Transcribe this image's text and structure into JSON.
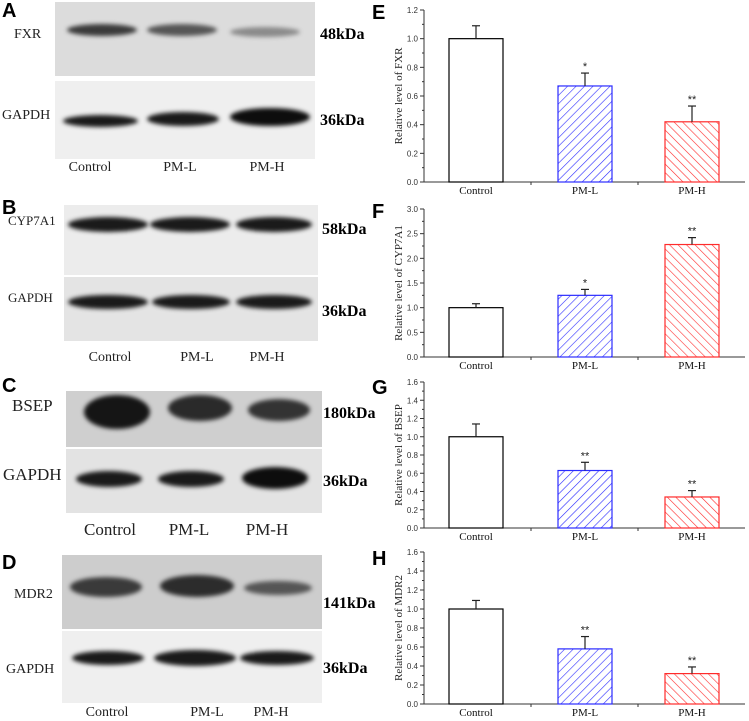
{
  "groups": [
    "Control",
    "PM-L",
    "PM-H"
  ],
  "colors": {
    "control": "#000000",
    "pm_l": "#2b2bff",
    "pm_h": "#ff2b2b"
  },
  "blots": [
    {
      "letter": "A",
      "protein": "FXR",
      "protein_kda": "48kDa",
      "ref": "GAPDH",
      "ref_kda": "36kDa",
      "lanes": [
        "Control",
        "PM-L",
        "PM-H"
      ]
    },
    {
      "letter": "B",
      "protein": "CYP7A1",
      "protein_kda": "58kDa",
      "ref": "GAPDH",
      "ref_kda": "36kDa",
      "lanes": [
        "Control",
        "PM-L",
        "PM-H"
      ]
    },
    {
      "letter": "C",
      "protein": "BSEP",
      "protein_kda": "180kDa",
      "ref": "GAPDH",
      "ref_kda": "36kDa",
      "lanes": [
        "Control",
        "PM-L",
        "PM-H"
      ]
    },
    {
      "letter": "D",
      "protein": "MDR2",
      "protein_kda": "141kDa",
      "ref": "GAPDH",
      "ref_kda": "36kDa",
      "lanes": [
        "Control",
        "PM-L",
        "PM-H"
      ]
    }
  ],
  "chart_data": [
    {
      "letter": "E",
      "type": "bar",
      "title": "",
      "categories": [
        "Control",
        "PM-L",
        "PM-H"
      ],
      "values": [
        1.0,
        0.67,
        0.42
      ],
      "error_upper": [
        1.09,
        0.76,
        0.53
      ],
      "significance": [
        "",
        "*",
        "**"
      ],
      "xlabel": "",
      "ylabel": "Relative level of FXR",
      "ylim": [
        0,
        1.2
      ],
      "yticks": [
        "0.0",
        "0.2",
        "0.4",
        "0.6",
        "0.8",
        "1.0",
        "1.2"
      ],
      "grid": false,
      "legend": "none"
    },
    {
      "letter": "F",
      "type": "bar",
      "title": "",
      "categories": [
        "Control",
        "PM-L",
        "PM-H"
      ],
      "values": [
        1.0,
        1.25,
        2.28
      ],
      "error_upper": [
        1.08,
        1.37,
        2.42
      ],
      "significance": [
        "",
        "*",
        "**"
      ],
      "xlabel": "",
      "ylabel": "Relative level of CYP7A1",
      "ylim": [
        0,
        3.0
      ],
      "yticks": [
        "0.0",
        "0.5",
        "1.0",
        "1.5",
        "2.0",
        "2.5",
        "3.0"
      ],
      "grid": false,
      "legend": "none"
    },
    {
      "letter": "G",
      "type": "bar",
      "title": "",
      "categories": [
        "Control",
        "PM-L",
        "PM-H"
      ],
      "values": [
        1.0,
        0.63,
        0.34
      ],
      "error_upper": [
        1.14,
        0.72,
        0.41
      ],
      "significance": [
        "",
        "**",
        "**"
      ],
      "xlabel": "",
      "ylabel": "Relative level of BSEP",
      "ylim": [
        0,
        1.6
      ],
      "yticks": [
        "0.0",
        "0.2",
        "0.4",
        "0.6",
        "0.8",
        "1.0",
        "1.2",
        "1.4",
        "1.6"
      ],
      "grid": false,
      "legend": "none"
    },
    {
      "letter": "H",
      "type": "bar",
      "title": "",
      "categories": [
        "Control",
        "PM-L",
        "PM-H"
      ],
      "values": [
        1.0,
        0.58,
        0.32
      ],
      "error_upper": [
        1.09,
        0.71,
        0.39
      ],
      "significance": [
        "",
        "**",
        "**"
      ],
      "xlabel": "",
      "ylabel": "Relative level of MDR2",
      "ylim": [
        0,
        1.6
      ],
      "yticks": [
        "0.0",
        "0.2",
        "0.4",
        "0.6",
        "0.8",
        "1.0",
        "1.2",
        "1.4",
        "1.6"
      ],
      "grid": false,
      "legend": "none"
    }
  ]
}
